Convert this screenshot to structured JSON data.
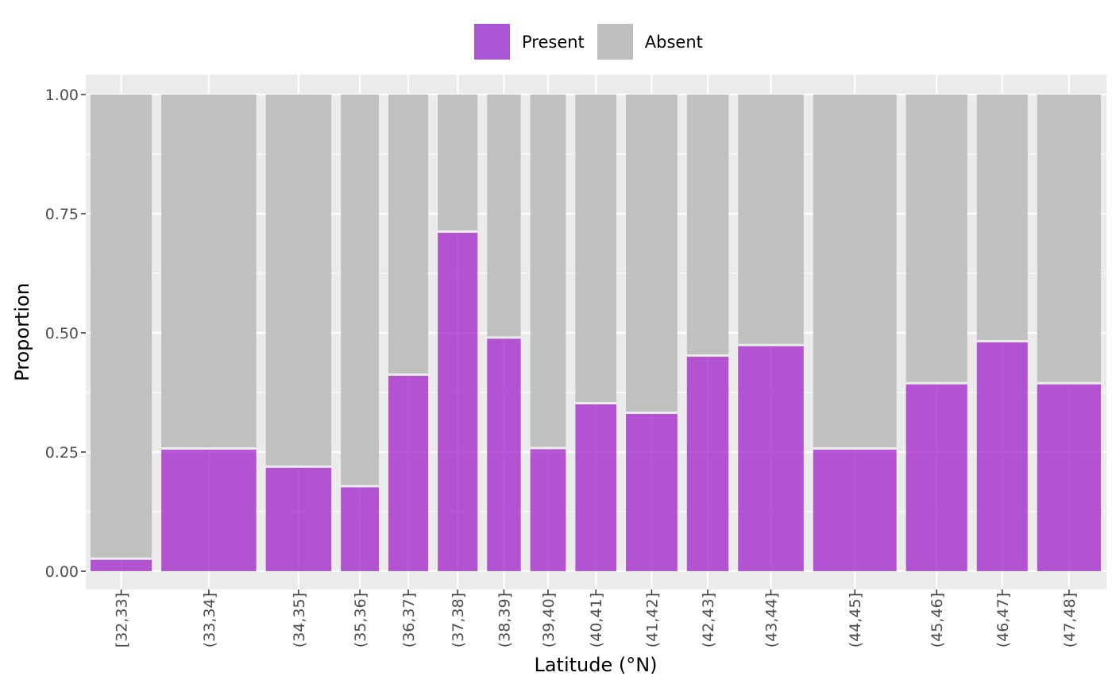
{
  "chart_data": {
    "type": "bar",
    "stacked": true,
    "title": "",
    "xlabel": "Latitude (°N)",
    "ylabel": "Proportion",
    "ylim": [
      0,
      1
    ],
    "yticks": [
      "0.00",
      "0.25",
      "0.50",
      "0.75",
      "1.00"
    ],
    "grid": true,
    "legend_position": "top",
    "categories": [
      "[32,33]",
      "(33,34]",
      "(34,35]",
      "(35,36]",
      "(36,37]",
      "(37,38]",
      "(38,39]",
      "(39,40]",
      "(40,41]",
      "(41,42]",
      "(42,43]",
      "(43,44]",
      "(44,45]",
      "(45,46]",
      "(46,47]",
      "(47,48]"
    ],
    "relative_widths": [
      1,
      1.55,
      1.07,
      0.62,
      0.65,
      0.65,
      0.55,
      0.58,
      0.67,
      0.84,
      0.68,
      1.07,
      1.36,
      1.0,
      0.83,
      1.04
    ],
    "series": [
      {
        "name": "Present",
        "color": "#A020C8",
        "values": [
          0.024,
          0.255,
          0.217,
          0.176,
          0.41,
          0.71,
          0.488,
          0.256,
          0.35,
          0.33,
          0.45,
          0.472,
          0.255,
          0.392,
          0.48,
          0.392
        ]
      },
      {
        "name": "Absent",
        "color": "#BEBEBE",
        "values": [
          0.976,
          0.745,
          0.783,
          0.824,
          0.59,
          0.29,
          0.512,
          0.744,
          0.65,
          0.67,
          0.55,
          0.528,
          0.745,
          0.608,
          0.52,
          0.608
        ]
      }
    ]
  },
  "legend": {
    "present_label": "Present",
    "absent_label": "Absent",
    "present_color": "#AB56D6",
    "absent_color": "#BEBEBE"
  }
}
